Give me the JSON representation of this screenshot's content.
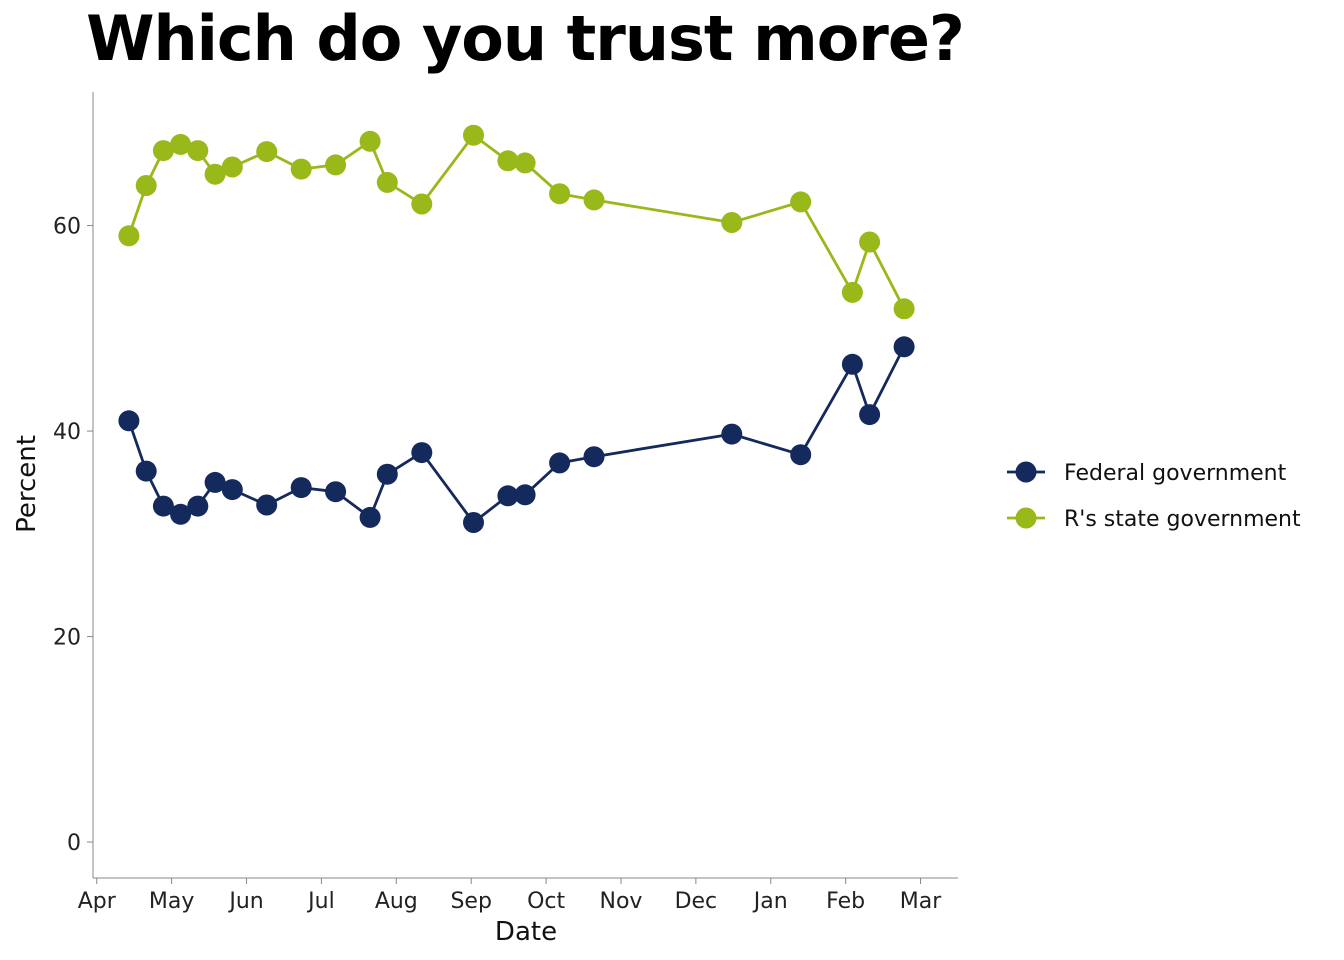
{
  "chart_data": {
    "type": "line",
    "title": "Which do you trust more?",
    "xlabel": "Date",
    "ylabel": "Percent",
    "x_ticks": [
      {
        "label": "Apr",
        "month": 0
      },
      {
        "label": "May",
        "month": 1
      },
      {
        "label": "Jun",
        "month": 2
      },
      {
        "label": "Jul",
        "month": 3
      },
      {
        "label": "Aug",
        "month": 4
      },
      {
        "label": "Sep",
        "month": 5
      },
      {
        "label": "Oct",
        "month": 6
      },
      {
        "label": "Nov",
        "month": 7
      },
      {
        "label": "Dec",
        "month": 8
      },
      {
        "label": "Jan",
        "month": 9
      },
      {
        "label": "Feb",
        "month": 10
      },
      {
        "label": "Mar",
        "month": 11
      }
    ],
    "y_ticks": [
      0,
      20,
      40,
      60
    ],
    "xlim": [
      -0.05,
      11.5
    ],
    "ylim": [
      -3.5,
      73
    ],
    "x": [
      0.43,
      0.66,
      0.89,
      1.12,
      1.35,
      1.58,
      1.81,
      2.27,
      2.73,
      3.19,
      3.65,
      3.88,
      4.34,
      5.03,
      5.49,
      5.72,
      6.18,
      6.64,
      8.48,
      9.4,
      10.09,
      10.32,
      10.78
    ],
    "series": [
      {
        "name": "Federal government",
        "color": "#14295c",
        "values": [
          41.0,
          36.1,
          32.7,
          31.9,
          32.7,
          35.0,
          34.3,
          32.8,
          34.5,
          34.1,
          31.6,
          35.8,
          37.9,
          31.1,
          33.7,
          33.8,
          36.9,
          37.5,
          39.7,
          37.7,
          46.5,
          41.6,
          48.2
        ]
      },
      {
        "name": "R's state government",
        "color": "#99b81a",
        "values": [
          59.0,
          63.9,
          67.3,
          67.9,
          67.3,
          65.0,
          65.7,
          67.2,
          65.5,
          65.9,
          68.2,
          64.2,
          62.1,
          68.8,
          66.3,
          66.1,
          63.1,
          62.5,
          60.3,
          62.3,
          53.5,
          58.4,
          51.9
        ]
      }
    ],
    "legend_position": "right",
    "grid": false
  }
}
